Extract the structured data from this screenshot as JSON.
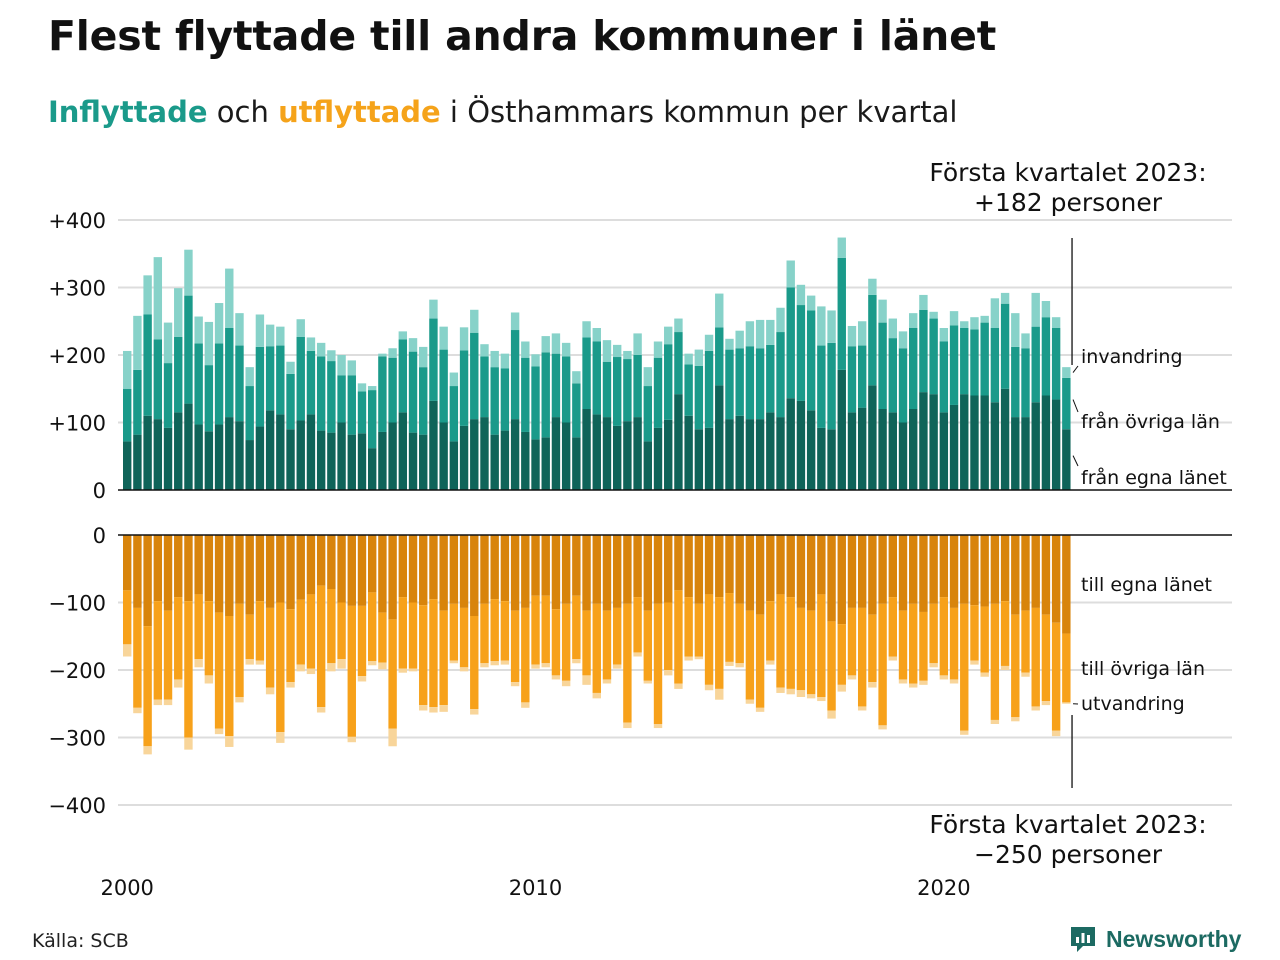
{
  "title": "Flest flyttade till andra kommuner i länet",
  "subtitle": {
    "inflow_word": "Inflyttade",
    "mid": " och ",
    "outflow_word": "utflyttade",
    "rest": " i Östhammars kommun per kvartal"
  },
  "source": "Källa: SCB",
  "logo_text": "Newsworthy",
  "colors": {
    "in_own": "#0f6459",
    "in_other": "#1a9a8a",
    "in_imm": "#87d2c9",
    "out_own": "#d8840b",
    "out_other": "#f7a11a",
    "out_emi": "#f8d59a"
  },
  "chart_data": {
    "type": "bar",
    "stacked": true,
    "x_start": "2000 Q1",
    "x_ticks": [
      "2000",
      "2010",
      "2020"
    ],
    "ylim_top": [
      0,
      400
    ],
    "ylim_bottom": [
      -400,
      0
    ],
    "y_ticks_top": [
      "+400",
      "+300",
      "+200",
      "+100",
      "0"
    ],
    "y_ticks_bottom": [
      "0",
      "−100",
      "−200",
      "−300",
      "−400"
    ],
    "series_labels": {
      "in_imm": "invandring",
      "in_other": "från övriga län",
      "in_own": "från egna länet",
      "out_own": "till egna länet",
      "out_other": "till övriga län",
      "out_emi": "utvandring"
    },
    "annotations": {
      "top_line1": "Första kvartalet 2023:",
      "top_line2": "+182 personer",
      "bottom_line1": "Första kvartalet 2023:",
      "bottom_line2": "−250 personer"
    },
    "inflow": {
      "own": [
        72,
        82,
        110,
        105,
        92,
        115,
        128,
        97,
        87,
        97,
        108,
        102,
        74,
        94,
        118,
        112,
        90,
        103,
        112,
        88,
        85,
        100,
        82,
        84,
        62,
        86,
        100,
        115,
        85,
        82,
        132,
        100,
        72,
        95,
        105,
        108,
        82,
        88,
        105,
        86,
        75,
        78,
        108,
        100,
        78,
        120,
        112,
        108,
        95,
        102,
        108,
        72,
        92,
        104,
        142,
        110,
        90,
        92,
        155,
        105,
        110,
        105,
        105,
        115,
        108,
        136,
        132,
        118,
        92,
        90,
        178,
        115,
        122,
        155,
        120,
        115,
        100,
        120,
        145,
        142,
        115,
        126,
        142,
        140,
        140,
        130,
        150,
        108,
        108,
        130,
        140,
        134,
        90
      ],
      "other": [
        78,
        96,
        150,
        118,
        96,
        112,
        160,
        120,
        98,
        120,
        132,
        112,
        80,
        118,
        95,
        102,
        82,
        124,
        94,
        110,
        106,
        70,
        88,
        62,
        86,
        112,
        96,
        108,
        120,
        100,
        122,
        108,
        82,
        112,
        128,
        90,
        100,
        92,
        132,
        110,
        108,
        126,
        94,
        98,
        80,
        106,
        108,
        82,
        102,
        92,
        92,
        82,
        104,
        112,
        92,
        76,
        94,
        114,
        86,
        103,
        100,
        108,
        105,
        100,
        126,
        164,
        142,
        148,
        122,
        128,
        166,
        98,
        92,
        134,
        128,
        110,
        110,
        120,
        122,
        112,
        105,
        118,
        98,
        98,
        108,
        110,
        126,
        104,
        102,
        112,
        116,
        106,
        76
      ],
      "imm": [
        56,
        80,
        58,
        122,
        60,
        72,
        68,
        40,
        64,
        60,
        88,
        48,
        28,
        48,
        32,
        28,
        18,
        26,
        20,
        20,
        16,
        30,
        22,
        12,
        6,
        4,
        14,
        12,
        20,
        30,
        28,
        34,
        20,
        34,
        34,
        18,
        24,
        22,
        26,
        24,
        18,
        24,
        30,
        20,
        18,
        24,
        20,
        32,
        18,
        12,
        32,
        28,
        24,
        26,
        20,
        16,
        24,
        24,
        50,
        16,
        26,
        37,
        42,
        37,
        36,
        40,
        30,
        22,
        58,
        48,
        30,
        30,
        36,
        24,
        34,
        29,
        25,
        22,
        22,
        10,
        20,
        21,
        10,
        18,
        10,
        44,
        16,
        50,
        22,
        50,
        24,
        16,
        16
      ]
    },
    "outflow": {
      "own": [
        82,
        108,
        135,
        98,
        112,
        92,
        98,
        88,
        98,
        115,
        120,
        102,
        118,
        98,
        108,
        100,
        110,
        96,
        88,
        75,
        80,
        100,
        105,
        105,
        85,
        115,
        125,
        92,
        100,
        104,
        95,
        112,
        102,
        108,
        120,
        102,
        95,
        98,
        112,
        108,
        90,
        90,
        110,
        102,
        90,
        112,
        102,
        112,
        108,
        102,
        92,
        112,
        102,
        100,
        82,
        92,
        102,
        88,
        92,
        86,
        102,
        112,
        118,
        98,
        88,
        92,
        108,
        112,
        88,
        128,
        132,
        108,
        108,
        118,
        102,
        92,
        112,
        102,
        114,
        102,
        92,
        108,
        102,
        104,
        106,
        102,
        98,
        118,
        112,
        108,
        118,
        130,
        146
      ],
      "other": [
        80,
        148,
        178,
        146,
        132,
        122,
        202,
        96,
        110,
        172,
        178,
        138,
        66,
        88,
        118,
        192,
        108,
        96,
        110,
        180,
        110,
        84,
        194,
        104,
        102,
        74,
        162,
        106,
        98,
        148,
        160,
        140,
        84,
        88,
        138,
        88,
        92,
        88,
        106,
        140,
        102,
        100,
        98,
        114,
        94,
        96,
        132,
        102,
        84,
        176,
        82,
        104,
        178,
        100,
        138,
        88,
        78,
        134,
        136,
        102,
        88,
        132,
        138,
        88,
        138,
        136,
        122,
        124,
        152,
        132,
        90,
        100,
        146,
        100,
        180,
        88,
        102,
        118,
        102,
        88,
        116,
        106,
        188,
        82,
        98,
        172,
        96,
        152,
        92,
        146,
        128,
        160,
        102
      ],
      "emi": [
        18,
        8,
        12,
        8,
        8,
        12,
        18,
        12,
        12,
        8,
        16,
        8,
        8,
        6,
        10,
        16,
        8,
        10,
        8,
        8,
        12,
        14,
        8,
        8,
        6,
        10,
        26,
        6,
        4,
        8,
        8,
        10,
        4,
        6,
        8,
        6,
        6,
        6,
        6,
        8,
        6,
        6,
        6,
        8,
        6,
        14,
        8,
        6,
        6,
        8,
        6,
        4,
        6,
        8,
        8,
        6,
        4,
        8,
        16,
        6,
        6,
        6,
        6,
        6,
        8,
        8,
        10,
        6,
        6,
        12,
        10,
        6,
        6,
        8,
        6,
        6,
        6,
        6,
        6,
        6,
        6,
        6,
        6,
        6,
        6,
        6,
        6,
        6,
        6,
        6,
        6,
        8,
        2
      ]
    }
  }
}
